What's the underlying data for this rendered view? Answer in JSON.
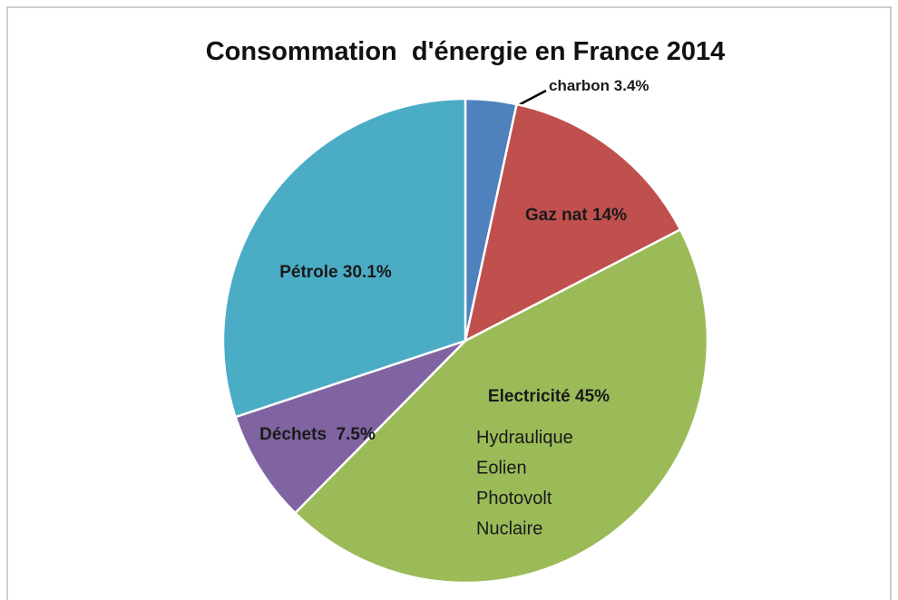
{
  "chart_data": {
    "type": "pie",
    "title": "Consommation  d'énergie en France 2014",
    "categories": [
      "charbon",
      "Gaz nat",
      "Electricité",
      "Déchets ",
      "Pétrole"
    ],
    "values": [
      3.4,
      14,
      45,
      7.5,
      30.1
    ],
    "value_labels": [
      "3.4%",
      "14%",
      "45%",
      "7.5%",
      "30.1%"
    ],
    "colors": [
      "#4f81bd",
      "#c0504d",
      "#9bbb59",
      "#8064a2",
      "#4bacc6"
    ],
    "annotations": [
      "Hydraulique",
      "Eolien",
      "Photovolt",
      "Nuclaire"
    ]
  }
}
